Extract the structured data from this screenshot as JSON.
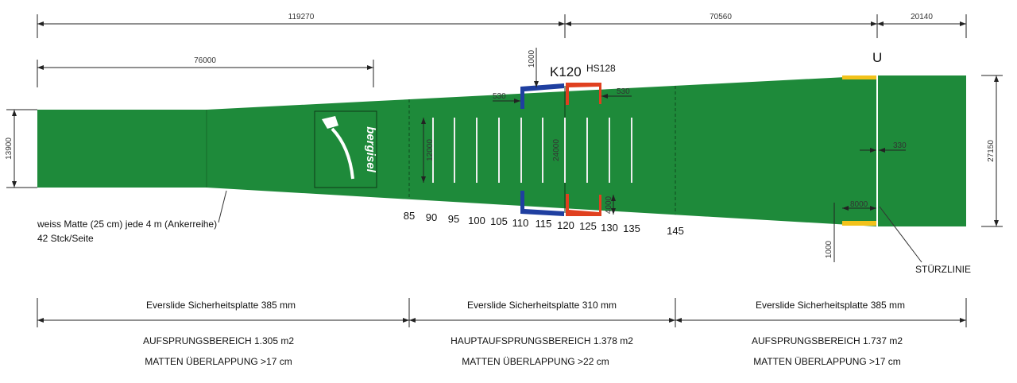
{
  "colors": {
    "turf": "#1e8a3a",
    "k_marker": "#1f3fa0",
    "hs_marker": "#e0401f",
    "u_marker": "#f2c21a"
  },
  "dimensions": {
    "total_left": "119270",
    "middle": "70560",
    "right": "20140",
    "start_length": "76000",
    "start_width": "13900",
    "end_width": "27150",
    "k_gap": "1000",
    "k_offset": "530",
    "hs_offset": "530",
    "stripe_length": "12000",
    "mid_width": "24000",
    "hs_length": "4000",
    "fall_gap": "330",
    "u_length": "8000",
    "u_gap": "1000"
  },
  "labels": {
    "k_point": "K120",
    "hill_size": "HS128",
    "u_point": "U",
    "fall_line": "STÜRZLINIE",
    "logo": "bergisel"
  },
  "note": {
    "line1": "weiss Matte (25 cm) jede 4 m (Ankerreihe)",
    "line2": "42 Stck/Seite"
  },
  "distance_marks": [
    "85",
    "90",
    "95",
    "100",
    "105",
    "110",
    "115",
    "120",
    "125",
    "130",
    "135",
    "145"
  ],
  "sections": [
    {
      "plate": "Everslide Sicherheitsplatte 385 mm",
      "area": "AUFSPRUNGSBEREICH 1.305 m2",
      "overlap": "MATTEN ÜBERLAPPUNG >17 cm"
    },
    {
      "plate": "Everslide Sicherheitsplatte 310 mm",
      "area": "HAUPTAUFSPRUNGSBEREICH 1.378 m2",
      "overlap": "MATTEN ÜBERLAPPUNG >22 cm"
    },
    {
      "plate": "Everslide Sicherheitsplatte 385 mm",
      "area": "AUFSPRUNGSBEREICH 1.737 m2",
      "overlap": "MATTEN ÜBERLAPPUNG >17 cm"
    }
  ]
}
